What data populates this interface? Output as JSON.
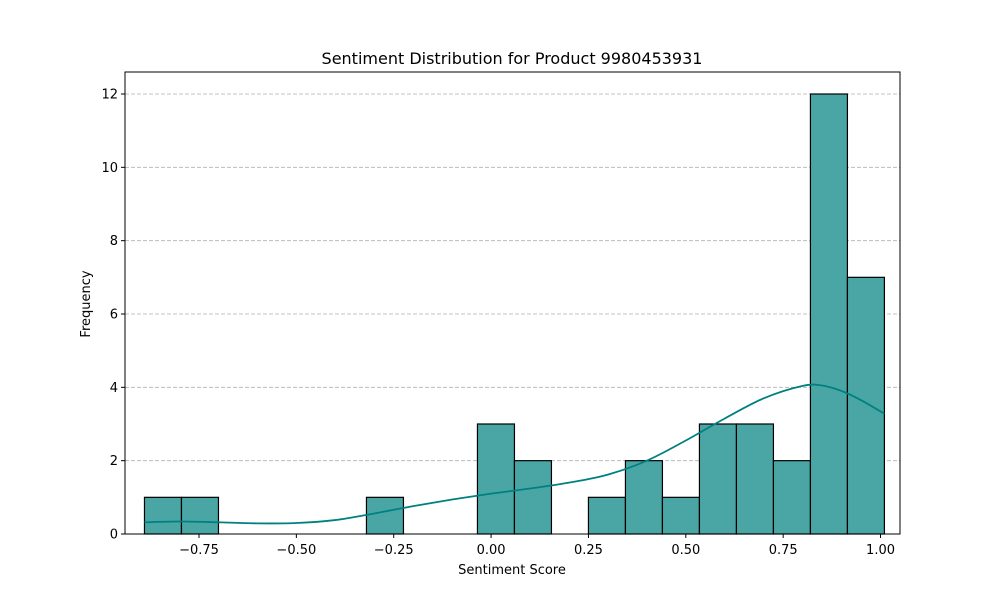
{
  "chart_data": {
    "type": "bar",
    "title": "Sentiment Distribution for Product 9980453931",
    "xlabel": "Sentiment Score",
    "ylabel": "Frequency",
    "xlim": [
      -0.94,
      1.05
    ],
    "ylim": [
      0,
      12.6
    ],
    "x_ticks": [
      -0.75,
      -0.5,
      -0.25,
      0.0,
      0.25,
      0.5,
      0.75,
      1.0
    ],
    "x_tick_labels": [
      "−0.75",
      "−0.50",
      "−0.25",
      "0.00",
      "0.25",
      "0.50",
      "0.75",
      "1.00"
    ],
    "y_ticks": [
      0,
      2,
      4,
      6,
      8,
      10,
      12
    ],
    "y_tick_labels": [
      "0",
      "2",
      "4",
      "6",
      "8",
      "10",
      "12"
    ],
    "grid": "y-dashed",
    "bins": [
      {
        "x0": -0.89,
        "x1": -0.795,
        "value": 1
      },
      {
        "x0": -0.795,
        "x1": -0.7,
        "value": 1
      },
      {
        "x0": -0.7,
        "x1": -0.605,
        "value": 0
      },
      {
        "x0": -0.605,
        "x1": -0.51,
        "value": 0
      },
      {
        "x0": -0.51,
        "x1": -0.415,
        "value": 0
      },
      {
        "x0": -0.415,
        "x1": -0.32,
        "value": 0
      },
      {
        "x0": -0.32,
        "x1": -0.225,
        "value": 1
      },
      {
        "x0": -0.225,
        "x1": -0.13,
        "value": 0
      },
      {
        "x0": -0.13,
        "x1": -0.035,
        "value": 0
      },
      {
        "x0": -0.035,
        "x1": 0.06,
        "value": 3
      },
      {
        "x0": 0.06,
        "x1": 0.155,
        "value": 2
      },
      {
        "x0": 0.155,
        "x1": 0.25,
        "value": 0
      },
      {
        "x0": 0.25,
        "x1": 0.345,
        "value": 1
      },
      {
        "x0": 0.345,
        "x1": 0.44,
        "value": 2
      },
      {
        "x0": 0.44,
        "x1": 0.535,
        "value": 1
      },
      {
        "x0": 0.535,
        "x1": 0.63,
        "value": 3
      },
      {
        "x0": 0.63,
        "x1": 0.725,
        "value": 3
      },
      {
        "x0": 0.725,
        "x1": 0.82,
        "value": 2
      },
      {
        "x0": 0.82,
        "x1": 0.915,
        "value": 12
      },
      {
        "x0": 0.915,
        "x1": 1.01,
        "value": 7
      }
    ],
    "kde": {
      "x": [
        -0.89,
        -0.8,
        -0.7,
        -0.6,
        -0.5,
        -0.4,
        -0.3,
        -0.2,
        -0.1,
        0.0,
        0.1,
        0.2,
        0.3,
        0.4,
        0.5,
        0.6,
        0.7,
        0.8,
        0.85,
        0.9,
        0.95,
        1.01
      ],
      "y": [
        0.32,
        0.34,
        0.32,
        0.29,
        0.3,
        0.38,
        0.56,
        0.76,
        0.94,
        1.1,
        1.24,
        1.4,
        1.62,
        2.0,
        2.55,
        3.15,
        3.7,
        4.04,
        4.05,
        3.9,
        3.65,
        3.28
      ]
    },
    "colors": {
      "bar_fill": "#4aa6a5",
      "bar_edge": "#000000",
      "kde_line": "#008080",
      "grid": "#b0b0b0"
    }
  }
}
